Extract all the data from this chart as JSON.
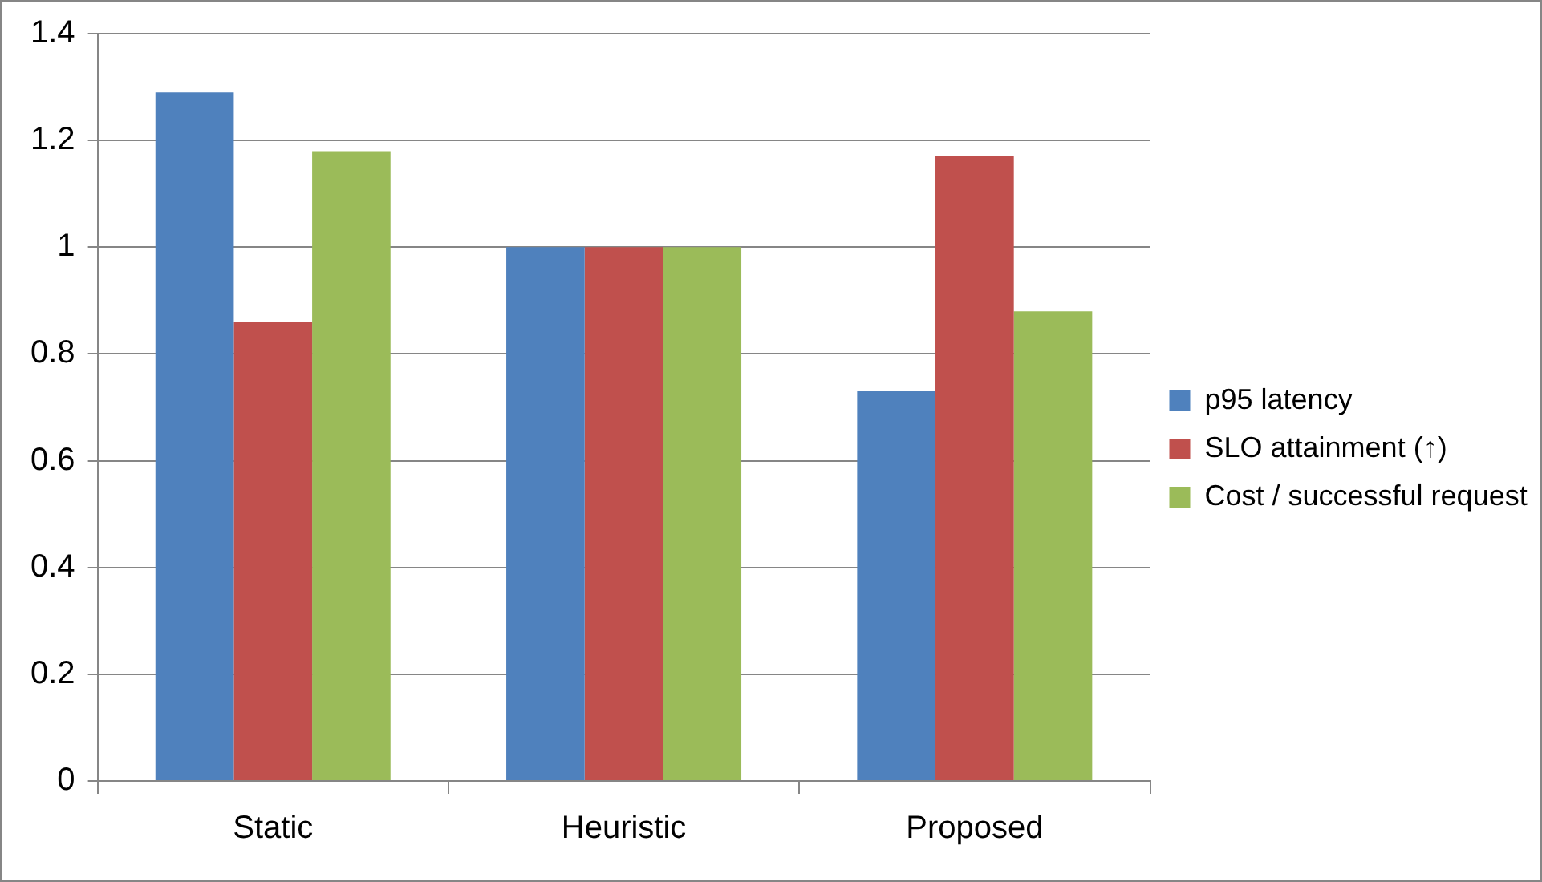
{
  "chart_data": {
    "type": "bar",
    "categories": [
      "Static",
      "Heuristic",
      "Proposed"
    ],
    "series": [
      {
        "name": "p95 latency",
        "color": "#4f81bd",
        "values": [
          1.29,
          1,
          0.73
        ]
      },
      {
        "name": "SLO attainment (↑)",
        "color": "#c0504d",
        "values": [
          0.86,
          1,
          1.17
        ]
      },
      {
        "name": "Cost / successful request",
        "color": "#9bbb59",
        "values": [
          1.18,
          1,
          0.88
        ]
      }
    ],
    "ylim": [
      0,
      1.4
    ],
    "yticks": [
      0,
      0.2,
      0.4,
      0.6,
      0.8,
      1,
      1.2,
      1.4
    ],
    "grid": "y",
    "legend": "right"
  }
}
